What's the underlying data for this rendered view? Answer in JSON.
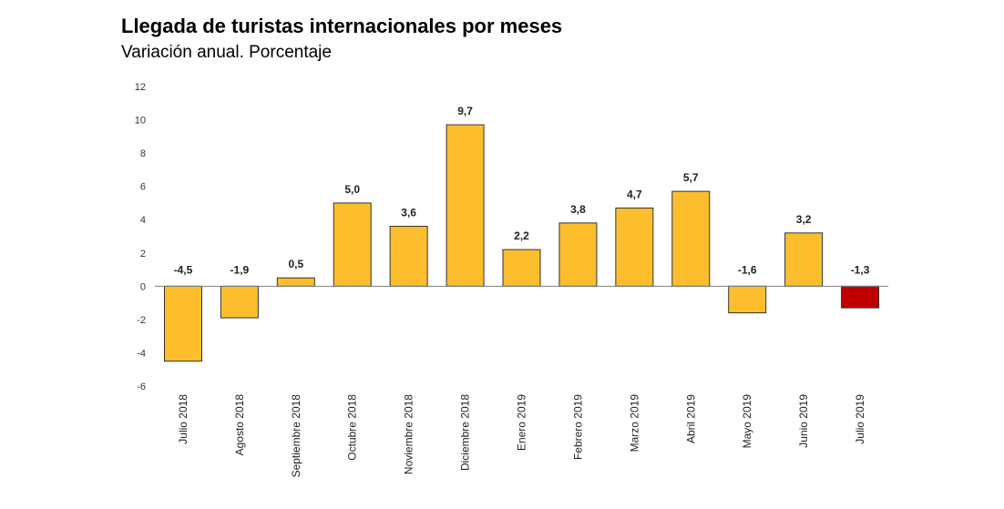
{
  "chart_data": {
    "type": "bar",
    "title": "Llegada de turistas internacionales por meses",
    "subtitle": "Variación anual. Porcentaje",
    "xlabel": "",
    "ylabel": "",
    "ylim": [
      -6,
      12
    ],
    "yticks": [
      12,
      10,
      8,
      6,
      4,
      2,
      0,
      -2,
      -4,
      -6
    ],
    "grid": false,
    "categories": [
      "Julio 2018",
      "Agosto 2018",
      "Septiembre 2018",
      "Octubre 2018",
      "Noviembre 2018",
      "Diciembre 2018",
      "Enero 2019",
      "Febrero 2019",
      "Marzo 2019",
      "Abril 2019",
      "Mayo 2019",
      "Junio 2019",
      "Julio 2019"
    ],
    "values": [
      -4.5,
      -1.9,
      0.5,
      5.0,
      3.6,
      9.7,
      2.2,
      3.8,
      4.7,
      5.7,
      -1.6,
      3.2,
      -1.3
    ],
    "value_labels": [
      "-4,5",
      "-1,9",
      "0,5",
      "5,0",
      "3,6",
      "9,7",
      "2,2",
      "3,8",
      "4,7",
      "5,7",
      "-1,6",
      "3,2",
      "-1,3"
    ],
    "colors": {
      "bar": "#FDBE2E",
      "highlight": "#C00000",
      "stroke": "#333333"
    },
    "highlight_index": 12
  }
}
